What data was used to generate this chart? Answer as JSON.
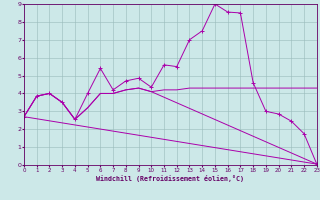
{
  "xlabel": "Windchill (Refroidissement éolien,°C)",
  "bg_color": "#cce8e8",
  "line_color": "#aa00aa",
  "grid_color": "#99bbbb",
  "spine_color": "#660066",
  "xlim": [
    0,
    23
  ],
  "ylim": [
    0,
    9
  ],
  "xticks": [
    0,
    1,
    2,
    3,
    4,
    5,
    6,
    7,
    8,
    9,
    10,
    11,
    12,
    13,
    14,
    15,
    16,
    17,
    18,
    19,
    20,
    21,
    22,
    23
  ],
  "yticks": [
    0,
    1,
    2,
    3,
    4,
    5,
    6,
    7,
    8,
    9
  ],
  "series": {
    "line1_x": [
      0,
      1,
      2,
      3,
      4,
      5,
      6,
      7,
      8,
      9,
      10,
      11,
      12,
      13,
      14,
      15,
      16,
      17,
      18,
      19,
      20,
      21,
      22,
      23
    ],
    "line1_y": [
      2.7,
      3.85,
      4.0,
      3.5,
      2.55,
      4.0,
      5.4,
      4.2,
      4.7,
      4.85,
      4.35,
      5.6,
      5.5,
      7.0,
      7.5,
      9.0,
      8.55,
      8.5,
      4.6,
      3.0,
      2.85,
      2.45,
      1.75,
      0.05
    ],
    "line2_x": [
      0,
      1,
      2,
      3,
      4,
      5,
      6,
      7,
      8,
      9,
      10,
      11,
      12,
      13,
      14,
      15,
      16,
      17,
      18,
      19,
      20,
      21,
      22,
      23
    ],
    "line2_y": [
      2.7,
      3.85,
      4.0,
      3.5,
      2.55,
      3.2,
      4.0,
      4.0,
      4.2,
      4.3,
      4.1,
      4.2,
      4.2,
      4.3,
      4.3,
      4.3,
      4.3,
      4.3,
      4.3,
      4.3,
      4.3,
      4.3,
      4.3,
      4.3
    ],
    "line3_x": [
      0,
      1,
      2,
      3,
      4,
      5,
      6,
      7,
      8,
      9,
      10,
      23
    ],
    "line3_y": [
      2.7,
      3.85,
      4.0,
      3.5,
      2.55,
      3.2,
      4.0,
      4.0,
      4.2,
      4.3,
      4.1,
      0.05
    ],
    "line4_x": [
      0,
      23
    ],
    "line4_y": [
      2.7,
      0.05
    ]
  }
}
